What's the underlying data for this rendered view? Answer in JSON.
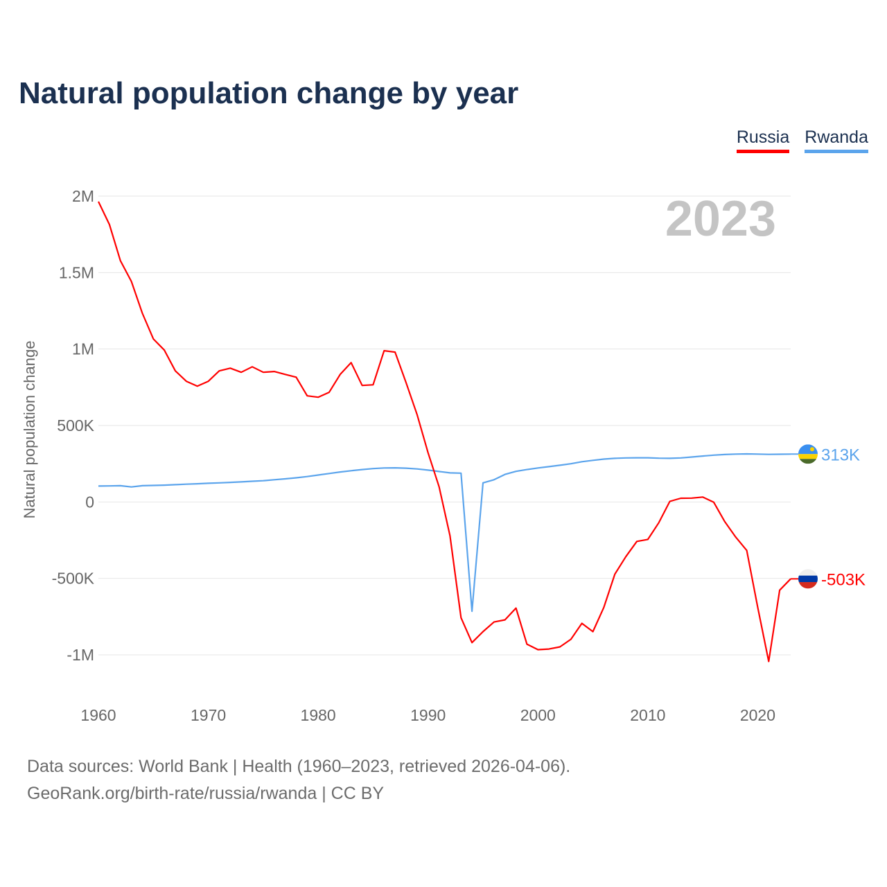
{
  "chart_data": {
    "type": "line",
    "title": "Natural population change by year",
    "ylabel": "Natural population change",
    "xlabel": "",
    "xlim": [
      1960,
      2023
    ],
    "ylim": [
      -1000000,
      2000000
    ],
    "x_ticks": [
      1960,
      1970,
      1980,
      1990,
      2000,
      2010,
      2020
    ],
    "y_ticks": [
      {
        "v": 2000000,
        "label": "2M"
      },
      {
        "v": 1500000,
        "label": "1.5M"
      },
      {
        "v": 1000000,
        "label": "1M"
      },
      {
        "v": 500000,
        "label": "500K"
      },
      {
        "v": 0,
        "label": "0"
      },
      {
        "v": -500000,
        "label": "-500K"
      },
      {
        "v": -1000000,
        "label": "-1M"
      }
    ],
    "grid": true,
    "legend_position": "top-right",
    "year_watermark": "2023",
    "x": [
      1960,
      1961,
      1962,
      1963,
      1964,
      1965,
      1966,
      1967,
      1968,
      1969,
      1970,
      1971,
      1972,
      1973,
      1974,
      1975,
      1976,
      1977,
      1978,
      1979,
      1980,
      1981,
      1982,
      1983,
      1984,
      1985,
      1986,
      1987,
      1988,
      1989,
      1990,
      1991,
      1992,
      1993,
      1994,
      1995,
      1996,
      1997,
      1998,
      1999,
      2000,
      2001,
      2002,
      2003,
      2004,
      2005,
      2006,
      2007,
      2008,
      2009,
      2010,
      2011,
      2012,
      2013,
      2014,
      2015,
      2016,
      2017,
      2018,
      2019,
      2020,
      2021,
      2022,
      2023
    ],
    "series": [
      {
        "name": "Russia",
        "color": "#ff0000",
        "end_label": "-503K",
        "values": [
          1964000,
          1814000,
          1578000,
          1442000,
          1234000,
          1066000,
          993000,
          857000,
          789000,
          757000,
          789000,
          857000,
          875000,
          848000,
          884000,
          848000,
          853000,
          834000,
          816000,
          694000,
          685000,
          717000,
          834000,
          911000,
          762000,
          766000,
          989000,
          980000,
          780000,
          571000,
          322000,
          100000,
          -222000,
          -757000,
          -920000,
          -848000,
          -785000,
          -771000,
          -694000,
          -930000,
          -966000,
          -962000,
          -948000,
          -898000,
          -794000,
          -848000,
          -689000,
          -472000,
          -358000,
          -258000,
          -245000,
          -136000,
          4000,
          24000,
          25000,
          32000,
          -2000,
          -129000,
          -230000,
          -317000,
          -688000,
          -1043000,
          -577000,
          -503000
        ]
      },
      {
        "name": "Rwanda",
        "color": "#5ba4ec",
        "end_label": "313K",
        "values": [
          104000,
          105000,
          106000,
          98000,
          106000,
          108000,
          110000,
          113000,
          116000,
          119000,
          122000,
          125000,
          128000,
          131000,
          135000,
          139000,
          145000,
          151000,
          158000,
          166000,
          176000,
          186000,
          196000,
          204000,
          212000,
          218000,
          222000,
          223000,
          221000,
          216000,
          208000,
          199000,
          190000,
          188000,
          -715000,
          125000,
          145000,
          180000,
          200000,
          212000,
          222000,
          231000,
          240000,
          250000,
          263000,
          272000,
          280000,
          285000,
          288000,
          289000,
          289000,
          286000,
          285000,
          288000,
          294000,
          300000,
          306000,
          310000,
          313000,
          314000,
          313000,
          311000,
          312000,
          313000
        ]
      }
    ]
  },
  "source": {
    "line1": "Data sources: World Bank | Health (1960–2023, retrieved 2026-04-06).",
    "line2": "GeoRank.org/birth-rate/russia/rwanda | CC BY"
  }
}
